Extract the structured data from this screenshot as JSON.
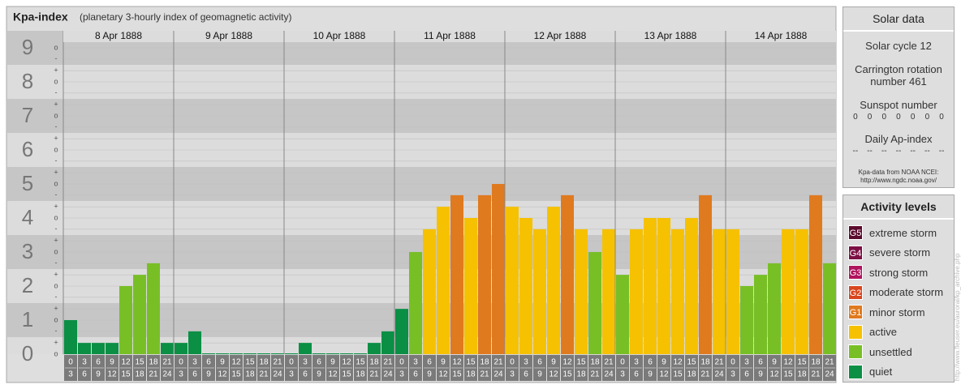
{
  "header": {
    "title": "Kpa-index",
    "subtitle": "(planetary 3-hourly index of geomagnetic activity)"
  },
  "chart_data": {
    "type": "bar",
    "ylim": [
      0,
      9.5
    ],
    "yticks": [
      0,
      1,
      2,
      3,
      4,
      5,
      6,
      7,
      8,
      9
    ],
    "minor_ticks": [
      {
        "value": 0,
        "label": "o"
      },
      {
        "value": 0.33,
        "label": "+"
      },
      {
        "value": 0.67,
        "label": "-"
      },
      {
        "value": 1,
        "label": "o"
      },
      {
        "value": 1.33,
        "label": "+"
      },
      {
        "value": 1.67,
        "label": "-"
      },
      {
        "value": 2,
        "label": "o"
      },
      {
        "value": 2.33,
        "label": "+"
      },
      {
        "value": 2.67,
        "label": "-"
      },
      {
        "value": 3,
        "label": "o"
      },
      {
        "value": 3.33,
        "label": "+"
      },
      {
        "value": 3.67,
        "label": "-"
      },
      {
        "value": 4,
        "label": "o"
      },
      {
        "value": 4.33,
        "label": "+"
      },
      {
        "value": 4.67,
        "label": "-"
      },
      {
        "value": 5,
        "label": "o"
      },
      {
        "value": 5.33,
        "label": "+"
      },
      {
        "value": 5.67,
        "label": "-"
      },
      {
        "value": 6,
        "label": "o"
      },
      {
        "value": 6.33,
        "label": "+"
      },
      {
        "value": 6.67,
        "label": "-"
      },
      {
        "value": 7,
        "label": "o"
      },
      {
        "value": 7.33,
        "label": "+"
      },
      {
        "value": 7.67,
        "label": "-"
      },
      {
        "value": 8,
        "label": "o"
      },
      {
        "value": 8.33,
        "label": "+"
      },
      {
        "value": 8.67,
        "label": "-"
      },
      {
        "value": 9,
        "label": "o"
      }
    ],
    "hours": [
      [
        "0",
        "3"
      ],
      [
        "3",
        "6"
      ],
      [
        "6",
        "9"
      ],
      [
        "9",
        "12"
      ],
      [
        "12",
        "15"
      ],
      [
        "15",
        "18"
      ],
      [
        "18",
        "21"
      ],
      [
        "21",
        "24"
      ]
    ],
    "days": [
      {
        "date": "8 Apr 1888",
        "values": [
          1,
          0.33,
          0.33,
          0.33,
          2,
          2.33,
          2.67,
          0.33
        ],
        "colors": [
          "#0a8f45",
          "#0a8f45",
          "#0a8f45",
          "#0a8f45",
          "#78bf26",
          "#78bf26",
          "#78bf26",
          "#0a8f45"
        ]
      },
      {
        "date": "9 Apr 1888",
        "values": [
          0.33,
          0.67,
          0,
          0,
          0,
          0,
          0,
          0
        ],
        "colors": [
          "#0a8f45",
          "#0a8f45",
          "#0a8f45",
          "#0a8f45",
          "#0a8f45",
          "#0a8f45",
          "#0a8f45",
          "#0a8f45"
        ]
      },
      {
        "date": "10 Apr 1888",
        "values": [
          0,
          0.33,
          0,
          0,
          0,
          0,
          0.33,
          0.67
        ],
        "colors": [
          "#0a8f45",
          "#0a8f45",
          "#0a8f45",
          "#0a8f45",
          "#0a8f45",
          "#0a8f45",
          "#0a8f45",
          "#0a8f45"
        ]
      },
      {
        "date": "11 Apr 1888",
        "values": [
          1.33,
          3,
          3.67,
          4.33,
          4.67,
          4,
          4.67,
          5
        ],
        "colors": [
          "#0a8f45",
          "#78bf26",
          "#f5c100",
          "#f5c100",
          "#e07a1f",
          "#f5c100",
          "#e07a1f",
          "#e07a1f"
        ]
      },
      {
        "date": "12 Apr 1888",
        "values": [
          4.33,
          4,
          3.67,
          4.33,
          4.67,
          3.67,
          3,
          3.67
        ],
        "colors": [
          "#f5c100",
          "#f5c100",
          "#f5c100",
          "#f5c100",
          "#e07a1f",
          "#f5c100",
          "#78bf26",
          "#f5c100"
        ]
      },
      {
        "date": "13 Apr 1888",
        "values": [
          2.33,
          3.67,
          4,
          4,
          3.67,
          4,
          4.67,
          3.67
        ],
        "colors": [
          "#78bf26",
          "#f5c100",
          "#f5c100",
          "#f5c100",
          "#f5c100",
          "#f5c100",
          "#e07a1f",
          "#f5c100"
        ]
      },
      {
        "date": "14 Apr 1888",
        "values": [
          3.67,
          2,
          2.33,
          2.67,
          3.67,
          3.67,
          4.67,
          2.67
        ],
        "colors": [
          "#f5c100",
          "#78bf26",
          "#78bf26",
          "#78bf26",
          "#f5c100",
          "#f5c100",
          "#e07a1f",
          "#78bf26"
        ]
      }
    ]
  },
  "solar": {
    "title": "Solar data",
    "cycle": "Solar cycle 12",
    "carrington": "Carrington rotation number 461",
    "sunspot_title": "Sunspot number",
    "sunspot": [
      0,
      0,
      0,
      0,
      0,
      0,
      0
    ],
    "ap_title": "Daily Ap-index",
    "ap": [
      "--",
      "--",
      "--",
      "--",
      "--",
      "--",
      "--"
    ],
    "source": "Kpa-data from NOAA NCEI:",
    "source_url": "http://www.ngdc.noaa.gov/"
  },
  "activity": {
    "title": "Activity levels",
    "levels": [
      {
        "badge": "G5",
        "name": "extreme storm",
        "color": "#5a0a2c"
      },
      {
        "badge": "G4",
        "name": "severe storm",
        "color": "#7c1044"
      },
      {
        "badge": "G3",
        "name": "strong storm",
        "color": "#b0145e"
      },
      {
        "badge": "G2",
        "name": "moderate storm",
        "color": "#d8461e"
      },
      {
        "badge": "G1",
        "name": "minor storm",
        "color": "#e07a1f"
      },
      {
        "name": "active",
        "color": "#f5c100"
      },
      {
        "name": "unsettled",
        "color": "#78bf26"
      },
      {
        "name": "quiet",
        "color": "#0a8f45"
      }
    ]
  },
  "watermark": "http://www.fleuser.eu/auroral/kp_archive.php"
}
